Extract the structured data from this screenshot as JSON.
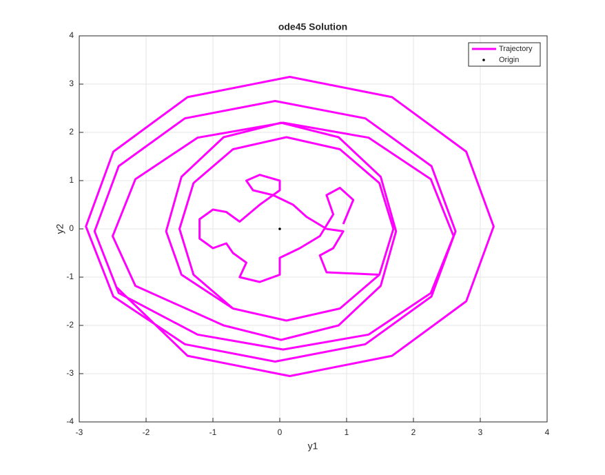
{
  "chart_data": {
    "type": "line",
    "title": "ode45 Solution",
    "x_label": "y1",
    "y_label": "y2",
    "xlim": [
      -3,
      4
    ],
    "ylim": [
      -4,
      4
    ],
    "xticks": [
      -3,
      -2,
      -1,
      0,
      1,
      2,
      3,
      4
    ],
    "yticks": [
      -4,
      -3,
      -2,
      -1,
      0,
      1,
      2,
      3,
      4
    ],
    "grid": true,
    "legend": "top-right",
    "series": [
      {
        "name": "Trajectory",
        "color": "#ff00ff",
        "style": "line",
        "x": [
          -2.45,
          -1.38,
          0.15,
          1.68,
          2.79,
          3.2,
          2.79,
          1.68,
          0.15,
          -1.38,
          -2.49,
          -2.9,
          -2.49,
          -1.42,
          -0.07,
          1.28,
          2.27,
          2.63,
          2.27,
          1.28,
          -0.07,
          -1.42,
          -2.41,
          -2.77,
          -2.41,
          -1.23,
          0.05,
          1.33,
          2.26,
          2.6,
          2.26,
          1.33,
          0.05,
          -1.23,
          -2.16,
          -2.5,
          -2.16,
          -0.84,
          0.02,
          0.88,
          1.51,
          1.74,
          1.51,
          0.88,
          0.02,
          -0.84,
          -1.47,
          -1.7,
          -1.47,
          -0.7,
          0.1,
          0.9,
          1.49,
          1.7,
          1.49,
          0.9,
          0.1,
          -0.7,
          -1.29,
          -1.5,
          -1.29,
          -0.7,
          0.1,
          0.9,
          1.49,
          0.7,
          0.6,
          0.8,
          0.95,
          0.7,
          0.4,
          0.2,
          -0.1,
          -0.4,
          -0.5,
          -0.3,
          0.0,
          0.0,
          -0.3,
          -0.6,
          -0.8,
          -1.0,
          -1.2,
          -1.2,
          -1.0,
          -0.8,
          -0.7,
          -0.5,
          -0.6,
          -0.3,
          0.0,
          0.0,
          0.3,
          0.6,
          0.8,
          0.7,
          0.9,
          1.1,
          0.95
        ],
        "values": [
          -1.2,
          -2.63,
          -3.05,
          -2.63,
          -1.5,
          0.05,
          1.6,
          2.73,
          3.15,
          2.73,
          1.6,
          0.05,
          -1.4,
          -2.39,
          -2.75,
          -2.39,
          -1.4,
          -0.05,
          1.3,
          2.29,
          2.65,
          2.29,
          1.3,
          -0.05,
          -1.33,
          -2.19,
          -2.5,
          -2.19,
          -1.33,
          -0.15,
          1.03,
          1.89,
          2.2,
          1.89,
          1.03,
          -0.15,
          -1.18,
          -2.0,
          -2.3,
          -2.0,
          -1.18,
          -0.05,
          1.08,
          1.9,
          2.2,
          1.9,
          1.08,
          -0.05,
          -0.95,
          -1.65,
          -1.9,
          -1.65,
          -0.95,
          0,
          0.95,
          1.65,
          1.9,
          1.65,
          0.95,
          0,
          -0.95,
          -1.65,
          -1.9,
          -1.65,
          -0.95,
          -0.9,
          -0.55,
          -0.4,
          -0.05,
          0,
          0.25,
          0.5,
          0.7,
          0.8,
          1.0,
          1.12,
          1.0,
          0.8,
          0.5,
          0.15,
          0.35,
          0.4,
          0.2,
          -0.2,
          -0.4,
          -0.3,
          -0.5,
          -0.7,
          -1.0,
          -1.1,
          -0.95,
          -0.6,
          -0.4,
          -0.15,
          0.3,
          0.7,
          0.85,
          0.6,
          0.1
        ]
      },
      {
        "name": "Origin",
        "color": "#000000",
        "style": "marker",
        "x": [
          0
        ],
        "values": [
          0
        ]
      }
    ]
  }
}
